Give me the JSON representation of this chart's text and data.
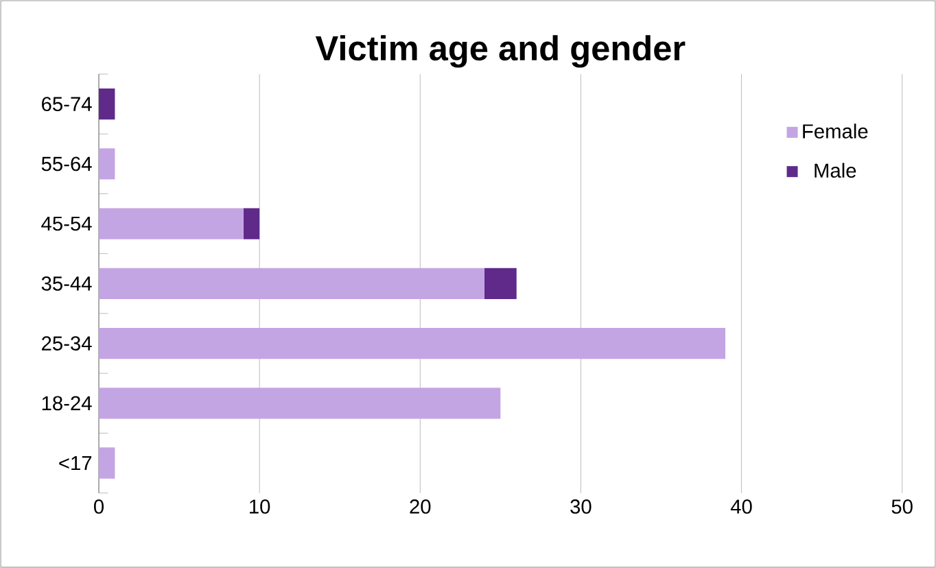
{
  "chart_data": {
    "type": "bar",
    "title": "Victim age and gender",
    "orientation": "horizontal",
    "stacked": true,
    "categories": [
      "65-74",
      "55-64",
      "45-54",
      "35-44",
      "25-34",
      "18-24",
      "<17"
    ],
    "series": [
      {
        "name": "Female",
        "color": "#c4a5e3",
        "values": [
          0,
          1,
          9,
          24,
          39,
          25,
          1
        ]
      },
      {
        "name": "Male",
        "color": "#5f2a8a",
        "values": [
          1,
          0,
          1,
          2,
          0,
          0,
          0
        ]
      }
    ],
    "xlim": [
      0,
      50
    ],
    "xticks": [
      0,
      10,
      20,
      30,
      40,
      50
    ],
    "grid": "x",
    "legend": "top right"
  }
}
